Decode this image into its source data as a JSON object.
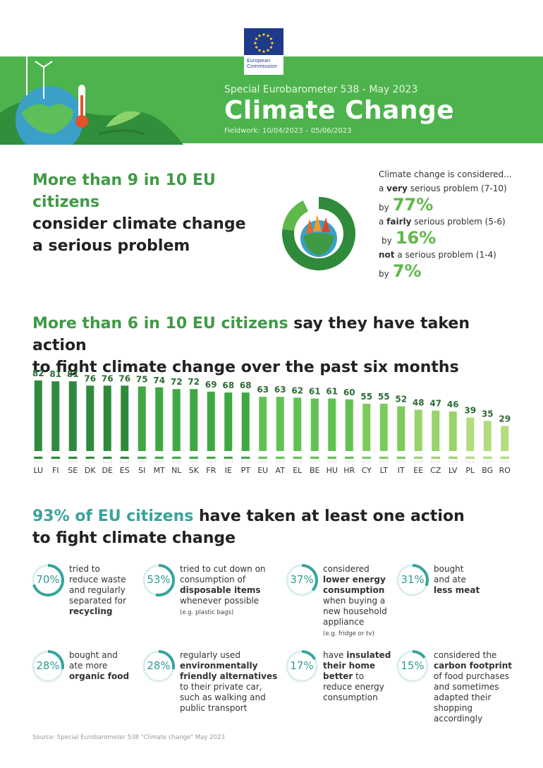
{
  "header": {
    "logo_line1": "European",
    "logo_line2": "Commission",
    "subtitle": "Special Eurobarometer 538 - May 2023",
    "title": "Climate Change",
    "fieldwork": "Fieldwork: 10/04/2023 – 05/06/2023"
  },
  "section1": {
    "heading_highlight": "More than 9 in 10 EU citizens",
    "heading_rest_line1": "consider climate change",
    "heading_rest_line2": "a serious problem",
    "intro": "Climate change is considered...",
    "items": [
      {
        "prefix": "a ",
        "bold": "very",
        "suffix": " serious problem (7-10)",
        "by": "by",
        "value": "77%"
      },
      {
        "prefix": "a ",
        "bold": "fairly",
        "suffix": " serious problem (5-6)",
        "by": "by",
        "value": "16%"
      },
      {
        "prefix": "",
        "bold": "not",
        "suffix": " a serious problem (1-4)",
        "by": "by",
        "value": "7%"
      }
    ],
    "donut_colors": [
      "#2f8a3b",
      "#5fb84a",
      "#ffffff"
    ]
  },
  "section2": {
    "heading_highlight": "More than 6 in 10 EU citizens",
    "heading_rest_line1": " say they have taken action",
    "heading_line2": "to fight climate change over the past six months"
  },
  "chart_data": {
    "type": "bar",
    "title": "More than 6 in 10 EU citizens say they have taken action to fight climate change over the past six months",
    "categories": [
      "LU",
      "FI",
      "SE",
      "DK",
      "DE",
      "ES",
      "SI",
      "MT",
      "NL",
      "SK",
      "FR",
      "IE",
      "PT",
      "EU",
      "AT",
      "EL",
      "BE",
      "HU",
      "HR",
      "CY",
      "LT",
      "IT",
      "EE",
      "CZ",
      "LV",
      "PL",
      "BG",
      "RO"
    ],
    "values": [
      82,
      81,
      81,
      76,
      76,
      76,
      75,
      74,
      72,
      72,
      69,
      68,
      68,
      63,
      63,
      62,
      61,
      61,
      60,
      55,
      55,
      52,
      48,
      47,
      46,
      39,
      35,
      29
    ],
    "colors": [
      "#2f8a3b",
      "#2f8a3b",
      "#2f8a3b",
      "#2f8a3b",
      "#2f8a3b",
      "#2f8a3b",
      "#3fa843",
      "#3fa843",
      "#3fa843",
      "#3fa843",
      "#3fa843",
      "#3fa843",
      "#3fa843",
      "#62c153",
      "#62c153",
      "#62c153",
      "#62c153",
      "#62c153",
      "#62c153",
      "#7ccc5c",
      "#7ccc5c",
      "#7ccc5c",
      "#98d46a",
      "#98d46a",
      "#98d46a",
      "#b1dd7c",
      "#b1dd7c",
      "#b1dd7c"
    ],
    "ylim": [
      0,
      82
    ],
    "xlabel": "",
    "ylabel": "",
    "grid": false
  },
  "section3": {
    "heading_highlight": "93% of EU citizens",
    "heading_rest_line1": " have taken at least one action",
    "heading_line2": "to fight climate change",
    "actions": [
      {
        "value": 70,
        "label": "70%",
        "lines": [
          [
            "tried to",
            ""
          ],
          [
            "reduce waste",
            ""
          ],
          [
            "and regularly",
            ""
          ],
          [
            "separated for",
            ""
          ],
          [
            "",
            "recycling"
          ]
        ],
        "note": ""
      },
      {
        "value": 53,
        "label": "53%",
        "lines": [
          [
            "tried to cut down on",
            ""
          ],
          [
            "consumption of",
            ""
          ],
          [
            "",
            "disposable items"
          ],
          [
            "whenever possible",
            ""
          ]
        ],
        "note": "(e.g. plastic bags)"
      },
      {
        "value": 37,
        "label": "37%",
        "lines": [
          [
            "considered",
            ""
          ],
          [
            "",
            "lower energy"
          ],
          [
            "",
            "consumption"
          ],
          [
            "when buying a",
            ""
          ],
          [
            "new household",
            ""
          ],
          [
            "appliance",
            ""
          ]
        ],
        "note": "(e.g. fridge or tv)"
      },
      {
        "value": 31,
        "label": "31%",
        "lines": [
          [
            "bought",
            ""
          ],
          [
            "and ate",
            ""
          ],
          [
            "",
            "less meat"
          ]
        ],
        "note": ""
      },
      {
        "value": 28,
        "label": "28%",
        "lines": [
          [
            "bought and",
            ""
          ],
          [
            "ate more",
            ""
          ],
          [
            "",
            "organic food"
          ]
        ],
        "note": ""
      },
      {
        "value": 28,
        "label": "28%",
        "lines": [
          [
            "regularly used",
            ""
          ],
          [
            "",
            "environmentally"
          ],
          [
            "",
            "friendly alternatives"
          ],
          [
            "to their private car,",
            ""
          ],
          [
            "such as walking and",
            ""
          ],
          [
            "public transport",
            ""
          ]
        ],
        "note": ""
      },
      {
        "value": 17,
        "label": "17%",
        "lines": [
          [
            "have ",
            "insulated"
          ],
          [
            "",
            "their home"
          ],
          [
            "",
            "better",
            " to"
          ],
          [
            "reduce energy",
            ""
          ],
          [
            "consumption",
            ""
          ]
        ],
        "note": ""
      },
      {
        "value": 15,
        "label": "15%",
        "lines": [
          [
            "considered the",
            ""
          ],
          [
            "",
            "carbon footprint"
          ],
          [
            "of food purchases",
            ""
          ],
          [
            "and sometimes",
            ""
          ],
          [
            "adapted their",
            ""
          ],
          [
            "shopping",
            ""
          ],
          [
            "accordingly",
            ""
          ]
        ],
        "note": ""
      }
    ]
  },
  "source": "Source: Special Eurobarometer 538 \"Climate change\" May 2023"
}
